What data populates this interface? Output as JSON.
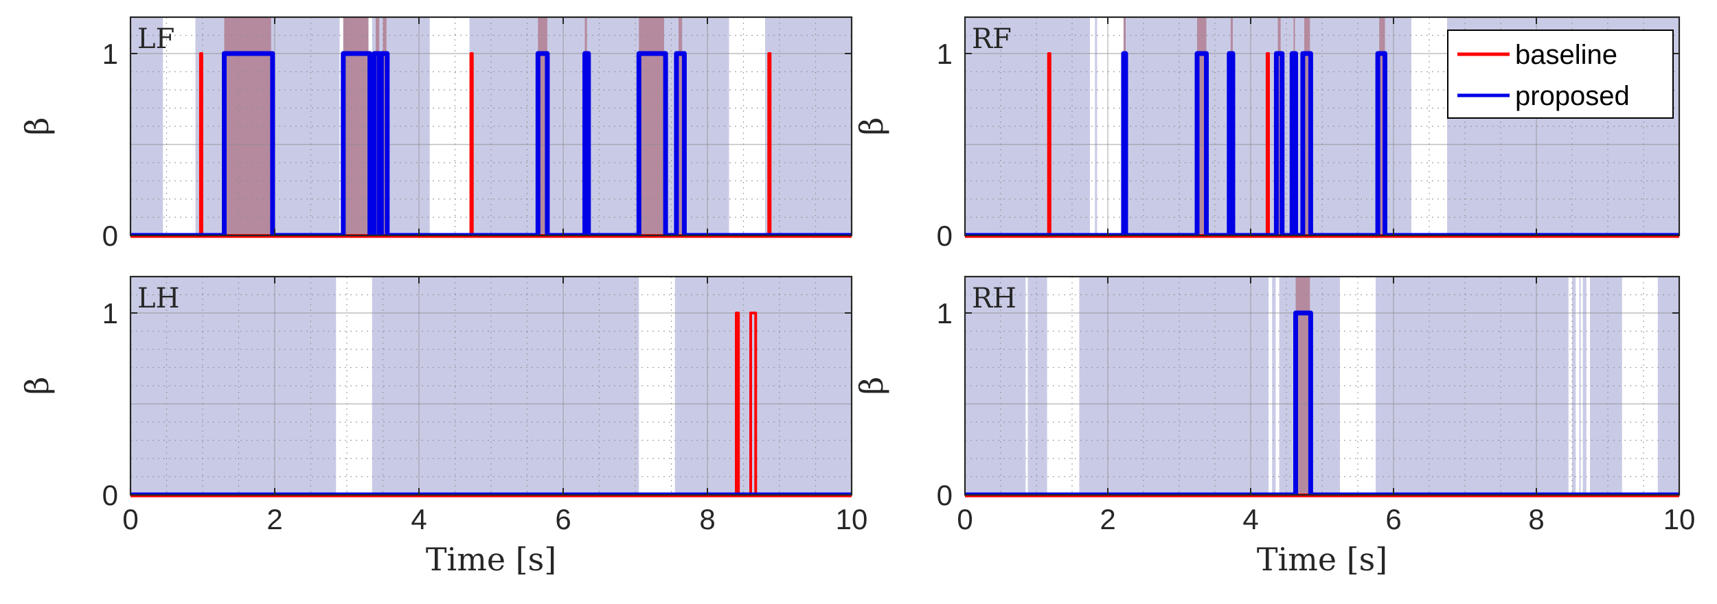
{
  "chart_data": [
    {
      "type": "line",
      "panel_label": "LF",
      "ylabel": "β",
      "xlabel": "",
      "xlim": [
        0,
        10
      ],
      "ylim": [
        0,
        1.2
      ],
      "xticks": [
        0,
        2,
        4,
        6,
        8,
        10
      ],
      "yticks": [
        0,
        1
      ],
      "grid": true,
      "stance_bands": [
        [
          0,
          0.45
        ],
        [
          0.9,
          2.9
        ],
        [
          3.35,
          4.15
        ],
        [
          4.7,
          8.3
        ],
        [
          8.8,
          10
        ]
      ],
      "slip_bands": [
        [
          1.3,
          1.95
        ],
        [
          2.95,
          3.3
        ],
        [
          3.4,
          3.45
        ],
        [
          3.5,
          3.55
        ],
        [
          5.65,
          5.78
        ],
        [
          6.3,
          6.33
        ],
        [
          7.05,
          7.4
        ],
        [
          7.6,
          7.65
        ]
      ],
      "series": [
        {
          "name": "baseline",
          "color": "#ff0000",
          "pulses": [
            [
              0.97,
              0.99
            ],
            [
              4.72,
              4.74
            ],
            [
              8.85,
              8.87
            ]
          ]
        },
        {
          "name": "proposed",
          "color": "#0000e6",
          "pulses": [
            [
              1.3,
              1.97
            ],
            [
              2.95,
              3.32
            ],
            [
              3.38,
              3.45
            ],
            [
              3.48,
              3.56
            ],
            [
              5.65,
              5.78
            ],
            [
              6.3,
              6.35
            ],
            [
              7.05,
              7.42
            ],
            [
              7.57,
              7.68
            ]
          ]
        }
      ]
    },
    {
      "type": "line",
      "panel_label": "RF",
      "ylabel": "β",
      "xlabel": "",
      "xlim": [
        0,
        10
      ],
      "ylim": [
        0,
        1.2
      ],
      "xticks": [
        0,
        2,
        4,
        6,
        8,
        10
      ],
      "yticks": [
        0,
        1
      ],
      "grid": true,
      "legend_position": "top-right",
      "stance_bands": [
        [
          0,
          1.75
        ],
        [
          1.82,
          1.85
        ],
        [
          2.25,
          6.25
        ],
        [
          6.75,
          10
        ]
      ],
      "slip_bands": [
        [
          2.22,
          2.25
        ],
        [
          3.25,
          3.38
        ],
        [
          3.72,
          3.75
        ],
        [
          4.38,
          4.42
        ],
        [
          4.6,
          4.62
        ],
        [
          4.75,
          4.83
        ],
        [
          5.8,
          5.88
        ]
      ],
      "series": [
        {
          "name": "baseline",
          "color": "#ff0000",
          "pulses": [
            [
              1.17,
              1.19
            ],
            [
              4.23,
              4.25
            ]
          ]
        },
        {
          "name": "proposed",
          "color": "#0000e6",
          "pulses": [
            [
              2.22,
              2.25
            ],
            [
              3.25,
              3.38
            ],
            [
              3.7,
              3.75
            ],
            [
              4.36,
              4.44
            ],
            [
              4.58,
              4.63
            ],
            [
              4.73,
              4.84
            ],
            [
              5.78,
              5.88
            ]
          ]
        }
      ]
    },
    {
      "type": "line",
      "panel_label": "LH",
      "ylabel": "β",
      "xlabel": "Time [s]",
      "xlim": [
        0,
        10
      ],
      "ylim": [
        0,
        1.2
      ],
      "xticks": [
        0,
        2,
        4,
        6,
        8,
        10
      ],
      "yticks": [
        0,
        1
      ],
      "grid": true,
      "stance_bands": [
        [
          0,
          2.85
        ],
        [
          3.35,
          7.05
        ],
        [
          7.55,
          10
        ]
      ],
      "slip_bands": [],
      "series": [
        {
          "name": "baseline",
          "color": "#ff0000",
          "pulses": [
            [
              8.4,
              8.43
            ],
            [
              8.6,
              8.67
            ]
          ]
        },
        {
          "name": "proposed",
          "color": "#0000e6",
          "pulses": []
        }
      ]
    },
    {
      "type": "line",
      "panel_label": "RH",
      "ylabel": "β",
      "xlabel": "Time [s]",
      "xlim": [
        0,
        10
      ],
      "ylim": [
        0,
        1.2
      ],
      "xticks": [
        0,
        2,
        4,
        6,
        8,
        10
      ],
      "yticks": [
        0,
        1
      ],
      "grid": true,
      "stance_bands": [
        [
          0,
          0.85
        ],
        [
          0.88,
          1.15
        ],
        [
          1.6,
          4.25
        ],
        [
          4.3,
          4.35
        ],
        [
          4.4,
          5.25
        ],
        [
          5.75,
          8.45
        ],
        [
          8.5,
          8.55
        ],
        [
          8.6,
          8.62
        ],
        [
          8.65,
          8.7
        ],
        [
          8.75,
          9.2
        ],
        [
          9.7,
          10
        ]
      ],
      "slip_bands": [
        [
          4.63,
          4.83
        ]
      ],
      "series": [
        {
          "name": "baseline",
          "color": "#ff0000",
          "pulses": []
        },
        {
          "name": "proposed",
          "color": "#0000e6",
          "pulses": [
            [
              4.63,
              4.84
            ]
          ]
        }
      ]
    }
  ],
  "legend": {
    "items": [
      {
        "label": "baseline",
        "color": "#ff0000"
      },
      {
        "label": "proposed",
        "color": "#0000e6"
      }
    ]
  },
  "colors": {
    "stance": "#c9cbe6",
    "slip": "#b58a9e",
    "grid": "#8c8c8c",
    "axis": "#262626"
  }
}
